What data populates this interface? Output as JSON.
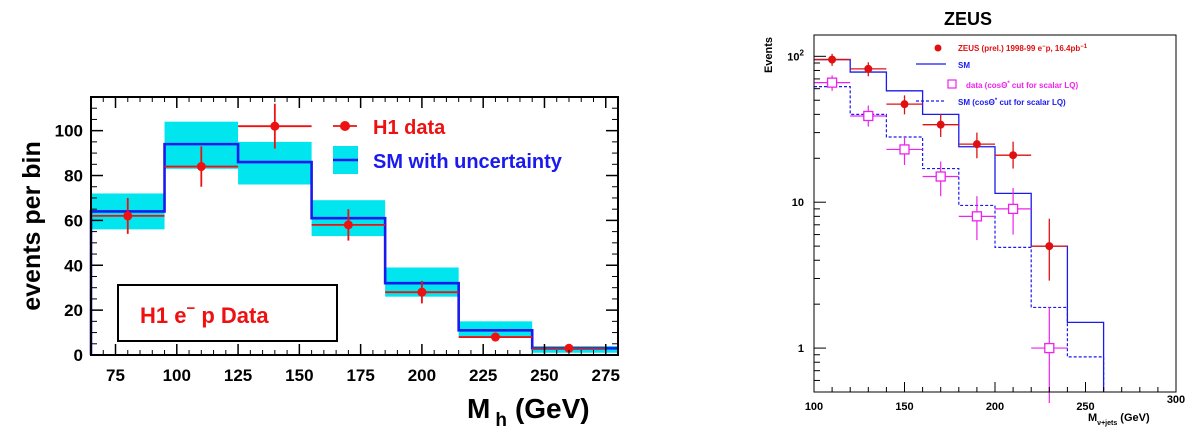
{
  "chart_data": [
    {
      "type": "bar",
      "panel": "H1",
      "ylabel": "events per bin",
      "xlabel": {
        "main": "M",
        "sub": "h",
        "unit": "(GeV)"
      },
      "xlim": [
        65,
        280
      ],
      "ylim": [
        0,
        115
      ],
      "xticks": [
        "75",
        "100",
        "125",
        "150",
        "175",
        "200",
        "225",
        "250",
        "275"
      ],
      "yticks": [
        "0",
        "20",
        "40",
        "60",
        "80",
        "100"
      ],
      "box_label": {
        "main": "H1 e",
        "sup": "−",
        "rest": " p Data"
      },
      "legend": {
        "data": "H1 data",
        "sm": "SM with uncertainty"
      },
      "colors": {
        "data": "#ee1111",
        "sm": "#1a1aee",
        "band": "#00e5ee",
        "frame": "#000000"
      },
      "sm_bins": [
        {
          "lo": 65,
          "hi": 95,
          "value": 64,
          "band": [
            56,
            72
          ]
        },
        {
          "lo": 95,
          "hi": 125,
          "value": 94,
          "band": [
            83,
            104
          ]
        },
        {
          "lo": 125,
          "hi": 155,
          "value": 86,
          "band": [
            76,
            95
          ]
        },
        {
          "lo": 155,
          "hi": 185,
          "value": 61,
          "band": [
            53,
            69
          ]
        },
        {
          "lo": 185,
          "hi": 215,
          "value": 32,
          "band": [
            26,
            39
          ]
        },
        {
          "lo": 215,
          "hi": 245,
          "value": 11,
          "band": [
            8,
            15
          ]
        },
        {
          "lo": 245,
          "hi": 280,
          "value": 3,
          "band": [
            1,
            4
          ]
        }
      ],
      "data_points": [
        {
          "x": 80,
          "y": 62,
          "err": 8
        },
        {
          "x": 110,
          "y": 84,
          "err": 9
        },
        {
          "x": 140,
          "y": 102,
          "err": 10
        },
        {
          "x": 170,
          "y": 58,
          "err": 7
        },
        {
          "x": 200,
          "y": 28,
          "err": 5
        },
        {
          "x": 230,
          "y": 8,
          "err": 2
        },
        {
          "x": 260,
          "y": 3,
          "err": 1.5
        }
      ]
    },
    {
      "type": "line",
      "panel": "ZEUS",
      "title": "ZEUS",
      "ylabel": "Events",
      "xlabel": {
        "main": "M",
        "sub": "ν+jets",
        "unit": " (GeV)"
      },
      "xlim": [
        100,
        300
      ],
      "ylim": [
        0.5,
        140
      ],
      "yscale": "log",
      "xticks": [
        "100",
        "150",
        "200",
        "250",
        "300"
      ],
      "yticks": [
        {
          "value": 1,
          "label": "1"
        },
        {
          "value": 10,
          "label": "10"
        },
        {
          "value": 100,
          "label": "10",
          "sup": "2"
        }
      ],
      "legend": [
        {
          "key": "zeus_data",
          "main": "ZEUS (prel.) 1998-99 e",
          "sup1": "−",
          "mid": "p, 16.4pb",
          "sup2": "−1"
        },
        {
          "key": "sm",
          "main": "SM"
        },
        {
          "key": "cut_data",
          "main": "data (cosΘ",
          "sup1": "*",
          "mid": " cut for scalar LQ)"
        },
        {
          "key": "cut_sm",
          "main": "SM (cosΘ",
          "sup1": "*",
          "mid": " cut for scalar LQ)"
        }
      ],
      "colors": {
        "data": "#e01010",
        "sm": "#1a1aee",
        "cut_data": "#ee22ee",
        "frame": "#000000"
      },
      "sm": [
        {
          "lo": 100,
          "hi": 120,
          "value": 95
        },
        {
          "lo": 120,
          "hi": 140,
          "value": 78
        },
        {
          "lo": 140,
          "hi": 160,
          "value": 58
        },
        {
          "lo": 160,
          "hi": 180,
          "value": 40
        },
        {
          "lo": 180,
          "hi": 200,
          "value": 24
        },
        {
          "lo": 200,
          "hi": 220,
          "value": 11.5
        },
        {
          "lo": 220,
          "hi": 240,
          "value": 5
        },
        {
          "lo": 240,
          "hi": 260,
          "value": 1.5
        }
      ],
      "sm_cut": [
        {
          "lo": 100,
          "hi": 120,
          "value": 62
        },
        {
          "lo": 120,
          "hi": 140,
          "value": 40
        },
        {
          "lo": 140,
          "hi": 160,
          "value": 28
        },
        {
          "lo": 160,
          "hi": 180,
          "value": 17
        },
        {
          "lo": 180,
          "hi": 200,
          "value": 9.5
        },
        {
          "lo": 200,
          "hi": 220,
          "value": 4.9
        },
        {
          "lo": 220,
          "hi": 240,
          "value": 1.9
        },
        {
          "lo": 240,
          "hi": 260,
          "value": 0.87
        }
      ],
      "data": [
        {
          "x": 110,
          "y": 95,
          "lo": 86,
          "hi": 104
        },
        {
          "x": 130,
          "y": 82,
          "lo": 73,
          "hi": 91
        },
        {
          "x": 150,
          "y": 47,
          "lo": 40,
          "hi": 54
        },
        {
          "x": 170,
          "y": 34,
          "lo": 28,
          "hi": 40
        },
        {
          "x": 190,
          "y": 25,
          "lo": 20,
          "hi": 30
        },
        {
          "x": 210,
          "y": 21,
          "lo": 17,
          "hi": 26
        },
        {
          "x": 230,
          "y": 5,
          "lo": 2.9,
          "hi": 7.7
        }
      ],
      "data_cut": [
        {
          "x": 110,
          "y": 66,
          "lo": 58,
          "hi": 74
        },
        {
          "x": 130,
          "y": 39,
          "lo": 33,
          "hi": 46
        },
        {
          "x": 150,
          "y": 23,
          "lo": 18,
          "hi": 28
        },
        {
          "x": 170,
          "y": 15,
          "lo": 11,
          "hi": 19
        },
        {
          "x": 190,
          "y": 8,
          "lo": 5.5,
          "hi": 11
        },
        {
          "x": 210,
          "y": 9,
          "lo": 6,
          "hi": 12.5
        },
        {
          "x": 230,
          "y": 1,
          "lo": 0.42,
          "hi": 1.9
        }
      ]
    }
  ]
}
